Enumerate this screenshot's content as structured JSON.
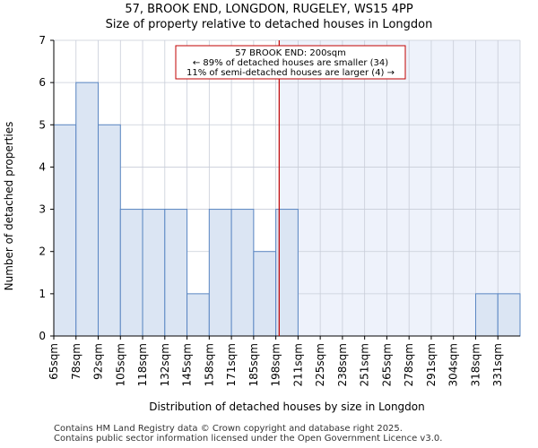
{
  "title_line1": "57, BROOK END, LONGDON, RUGELEY, WS15 4PP",
  "title_line2": "Size of property relative to detached houses in Longdon",
  "footer_line1": "Contains HM Land Registry data © Crown copyright and database right 2025.",
  "footer_line2": "Contains public sector information licensed under the Open Government Licence v3.0.",
  "colors": {
    "bar_fill": "#dbe5f3",
    "bar_stroke": "#5a86c2",
    "highlight_bg": "#eef2fb",
    "marker": "#c00000",
    "grid": "#c8cdd8"
  },
  "chart_data": {
    "type": "bar",
    "title": "Size of property relative to detached houses in Longdon",
    "xlabel": "Distribution of detached houses by size in Longdon",
    "ylabel": "Number of detached properties",
    "categories": [
      "65sqm",
      "78sqm",
      "92sqm",
      "105sqm",
      "118sqm",
      "132sqm",
      "145sqm",
      "158sqm",
      "171sqm",
      "185sqm",
      "198sqm",
      "211sqm",
      "225sqm",
      "238sqm",
      "251sqm",
      "265sqm",
      "278sqm",
      "291sqm",
      "304sqm",
      "318sqm",
      "331sqm"
    ],
    "values": [
      5,
      6,
      5,
      3,
      3,
      3,
      1,
      3,
      3,
      2,
      3,
      0,
      0,
      0,
      0,
      0,
      0,
      0,
      0,
      1,
      1
    ],
    "ylim": [
      0,
      7
    ],
    "yticks": [
      0,
      1,
      2,
      3,
      4,
      5,
      6,
      7
    ],
    "grid": true,
    "marker": {
      "value_index": 10.15,
      "label": "57 BROOK END: 200sqm",
      "line2": "← 89% of detached houses are smaller (34)",
      "line3": "11% of semi-detached houses are larger (4) →"
    }
  }
}
